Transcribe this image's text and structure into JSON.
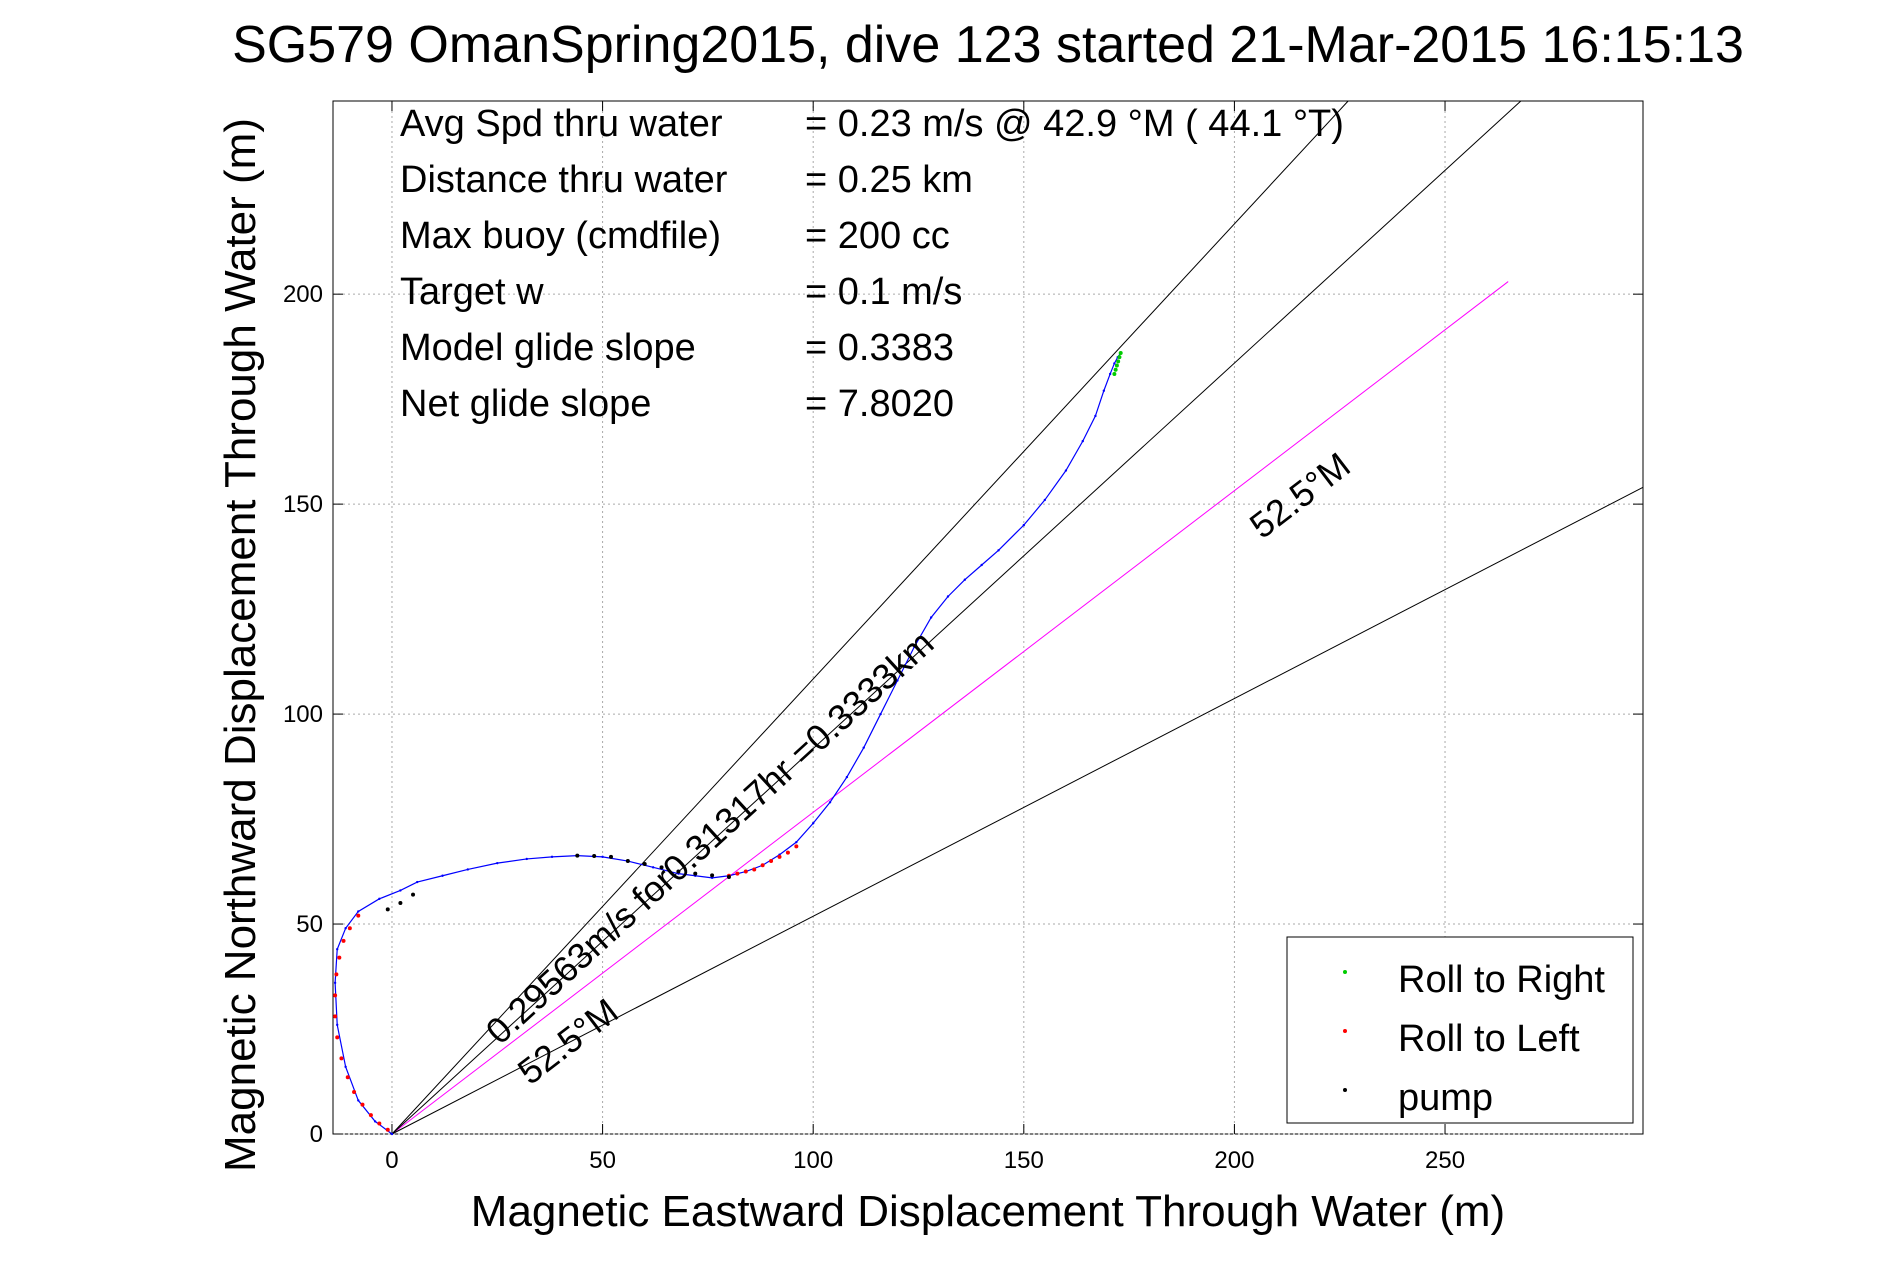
{
  "chart_data": {
    "type": "line",
    "title": "SG579 OmanSpring2015, dive 123 started 21-Mar-2015 16:15:13",
    "xlabel": "Magnetic Eastward Displacement Through Water (m)",
    "ylabel": "Magnetic Northward Displacement Through Water (m)",
    "xlim": [
      -14,
      297
    ],
    "ylim": [
      0,
      246
    ],
    "xticks": [
      0,
      50,
      100,
      150,
      200,
      250
    ],
    "yticks": [
      0,
      50,
      100,
      150,
      200
    ],
    "grid": true,
    "legend_position": "bottom-right",
    "legend": [
      {
        "label": "Roll to Right",
        "color": "#00cc00"
      },
      {
        "label": "Roll to Left",
        "color": "#ff0000"
      },
      {
        "label": "pump",
        "color": "#000000"
      }
    ],
    "stats": [
      {
        "label": "Avg Spd thru water",
        "value": "=  0.23 m/s @  42.9 °M ( 44.1 °T)"
      },
      {
        "label": "Distance thru water",
        "value": "=  0.25 km"
      },
      {
        "label": "Max buoy (cmdfile)",
        "value": "= 200 cc"
      },
      {
        "label": "Target w",
        "value": "= 0.1 m/s"
      },
      {
        "label": "Model glide slope",
        "value": "= 0.3383"
      },
      {
        "label": "Net glide slope",
        "value": "= 7.8020"
      }
    ],
    "annotations": {
      "heading_label_upper": "52.5°M",
      "heading_label_lower": "52.5°M",
      "current_label": "0.29563m/s for0.31317hr =0.3333km"
    },
    "series": [
      {
        "name": "track",
        "color": "#0000ff",
        "x": [
          0,
          -4,
          -8,
          -11,
          -13,
          -13.5,
          -13,
          -11,
          -8,
          -3,
          2,
          6,
          12,
          18,
          25,
          32,
          38,
          44,
          50,
          56,
          62,
          68,
          72,
          76,
          80,
          84,
          88,
          92,
          96,
          100,
          104,
          108,
          112,
          116,
          120,
          124,
          128,
          132,
          136,
          140,
          144,
          150,
          155,
          160,
          164,
          167,
          169,
          170.5,
          171.5,
          172.3,
          173
        ],
        "y": [
          0,
          3,
          8,
          16,
          26,
          36,
          44,
          49,
          53,
          56,
          58,
          60,
          61.5,
          63,
          64.5,
          65.5,
          66,
          66.3,
          66,
          65,
          63.5,
          62,
          61.5,
          61,
          61.5,
          62.5,
          64,
          66.5,
          69.5,
          74,
          79,
          85,
          92,
          100,
          108,
          116,
          123,
          128,
          132,
          135.5,
          139,
          145,
          151,
          158,
          165,
          171,
          177,
          181,
          183.5,
          185,
          186
        ]
      },
      {
        "name": "Roll to Right",
        "color": "#00cc00",
        "x": [
          171.5,
          171.8,
          172.1,
          172.4,
          172.7,
          173
        ],
        "y": [
          181,
          182,
          183,
          184,
          185,
          186
        ]
      },
      {
        "name": "Roll to Left",
        "color": "#ff0000",
        "x": [
          -1,
          -3,
          -5,
          -7,
          -9,
          -10.5,
          -12,
          -13,
          -13.5,
          -13.5,
          -13.2,
          -12.5,
          -11.5,
          -10,
          -8,
          80,
          82,
          84,
          86,
          88,
          90,
          92,
          94,
          96
        ],
        "y": [
          1,
          2.5,
          4.5,
          7,
          10,
          13.5,
          18,
          23,
          28,
          33,
          38,
          42,
          46,
          49,
          52,
          61.5,
          62,
          62.5,
          63,
          64,
          65,
          66,
          67,
          68.5
        ]
      },
      {
        "name": "pump",
        "color": "#000000",
        "x": [
          44,
          48,
          52,
          56,
          60,
          64,
          68,
          72,
          76,
          80,
          5,
          2,
          -1
        ],
        "y": [
          66.3,
          66.2,
          66,
          65,
          64.3,
          63.5,
          62.5,
          62,
          61.6,
          61.2,
          57,
          55,
          53.5
        ]
      }
    ],
    "reference_lines": [
      {
        "name": "heading line",
        "color": "#ff00ff",
        "x": [
          0,
          265
        ],
        "y": [
          0,
          203
        ]
      },
      {
        "name": "current line",
        "color": "#000000",
        "x": [
          0,
          268
        ],
        "y": [
          0,
          246
        ]
      },
      {
        "name": "cone line upper",
        "color": "#000000",
        "x": [
          0,
          227
        ],
        "y": [
          0,
          246
        ]
      },
      {
        "name": "cone line lower",
        "color": "#000000",
        "x": [
          0,
          297
        ],
        "y": [
          0,
          154
        ]
      }
    ]
  }
}
